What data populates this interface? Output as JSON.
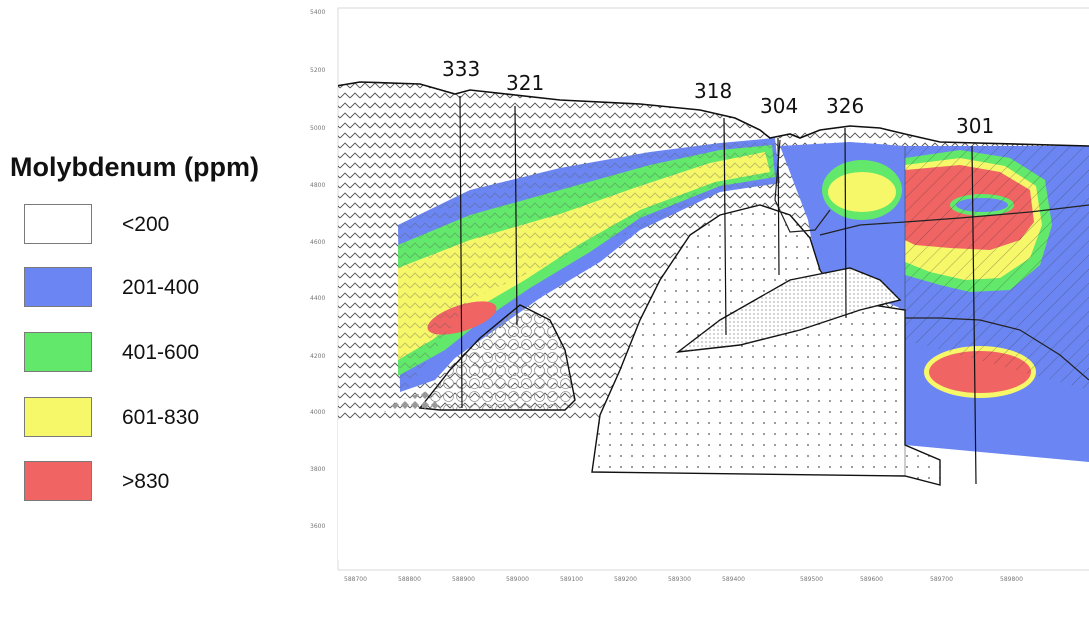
{
  "legend": {
    "title": "Molybdenum (ppm)",
    "items": [
      {
        "label": "<200",
        "color": "#ffffff"
      },
      {
        "label": "201-400",
        "color": "#6b86f2"
      },
      {
        "label": "401-600",
        "color": "#62e86a"
      },
      {
        "label": "601-830",
        "color": "#f7f76a"
      },
      {
        "label": ">830",
        "color": "#f06464"
      }
    ]
  },
  "drillholes": [
    "333",
    "321",
    "318",
    "304",
    "326",
    "301"
  ],
  "axis": {
    "y_ticks": [
      "5400",
      "5200",
      "5000",
      "4800",
      "4600",
      "4400",
      "4200",
      "4000",
      "3800",
      "3600"
    ],
    "x_ticks": [
      "588700",
      "588800",
      "588900",
      "589000",
      "589100",
      "589200",
      "589300",
      "589400",
      "589500",
      "589600",
      "589700",
      "589800"
    ]
  }
}
